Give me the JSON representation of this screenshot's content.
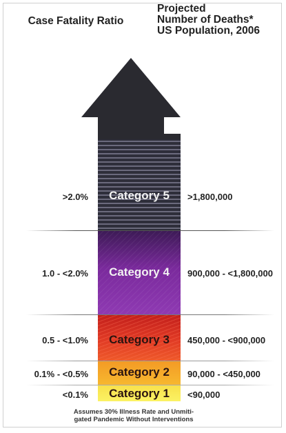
{
  "header": {
    "left_title": "Case Fatality Ratio",
    "right_title_lines": [
      "Projected",
      "Number of Deaths*",
      "US Population, 2006"
    ]
  },
  "categories": [
    {
      "label": "Category 5",
      "ratio": ">2.0%",
      "deaths": ">1,800,000"
    },
    {
      "label": "Category 4",
      "ratio": "1.0 - <2.0%",
      "deaths": "900,000 - <1,800,000"
    },
    {
      "label": "Category 3",
      "ratio": "0.5 - <1.0%",
      "deaths": "450,000 - <900,000"
    },
    {
      "label": "Category 2",
      "ratio": "0.1% - <0.5%",
      "deaths": "90,000 - <450,000"
    },
    {
      "label": "Category 1",
      "ratio": "<0.1%",
      "deaths": "<90,000"
    }
  ],
  "footnote_lines": [
    "Assumes 30% Illness Rate and Unmiti-",
    "gated Pandemic Without Interventions"
  ],
  "colors": {
    "arrow_head": "#2a2a30",
    "category_5": "#2e2e3a",
    "category_4": "#7a2a9c",
    "category_3": "#d92b20",
    "category_2": "#f5a82a",
    "category_1": "#f9ea55"
  }
}
